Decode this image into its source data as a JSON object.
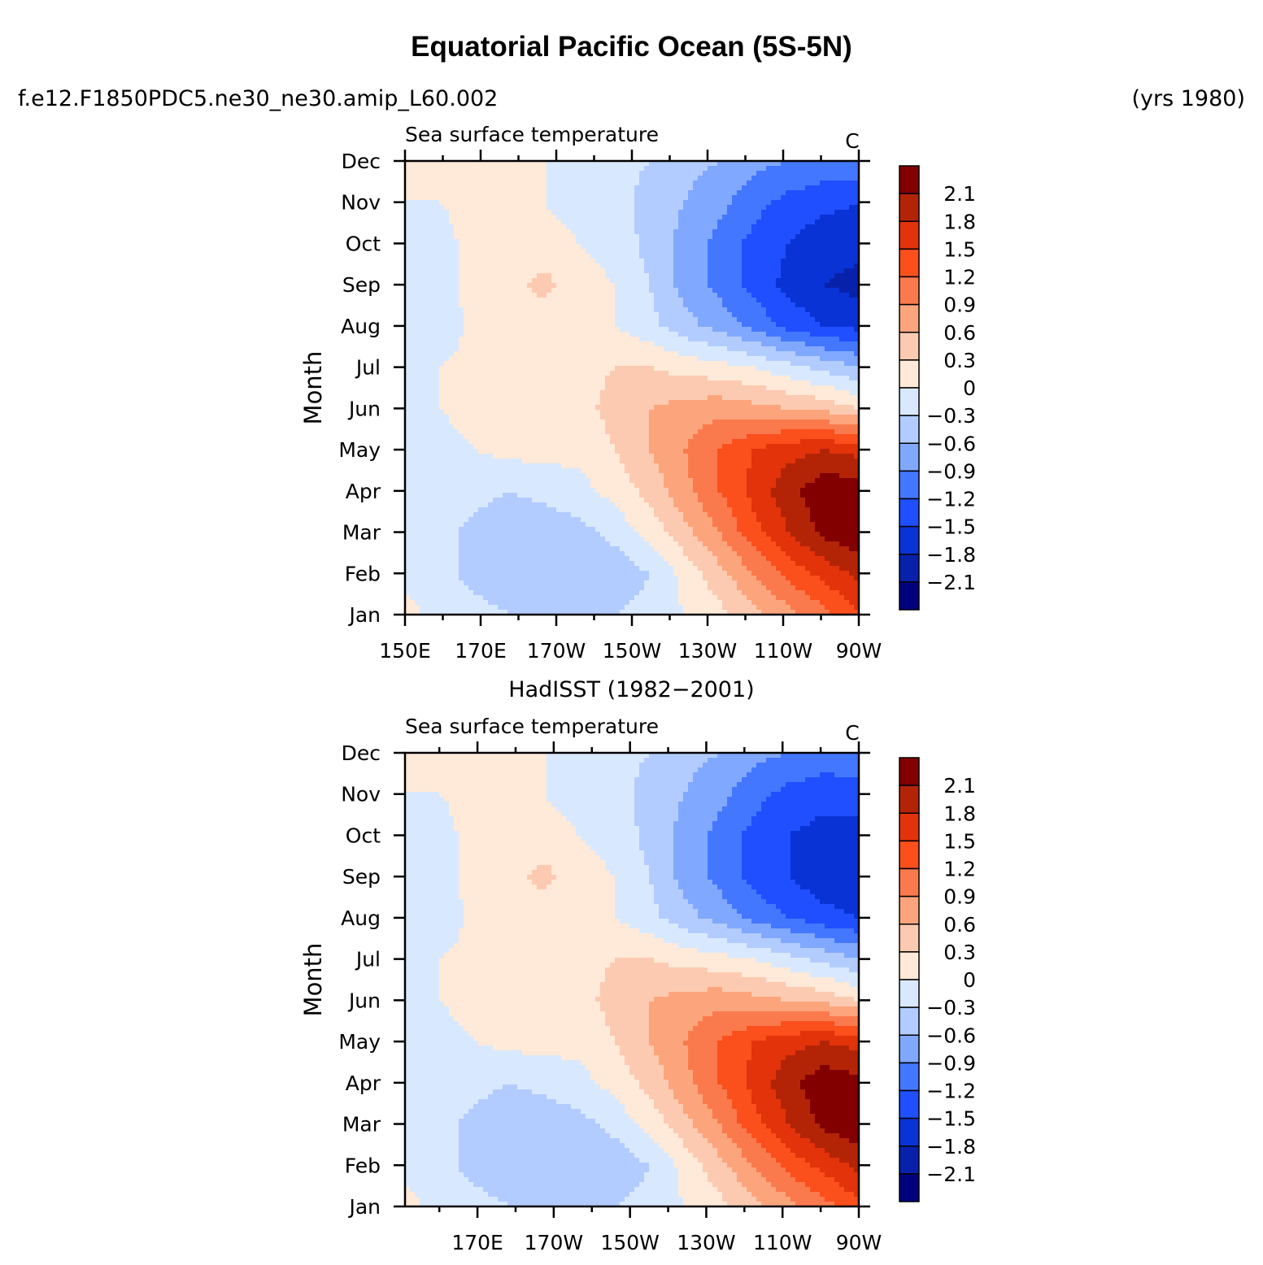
{
  "figure": {
    "title": "Equatorial Pacific Ocean (5S-5N)",
    "case_name": "f.e12.F1850PDC5.ne30_ne30.amip_L60.002",
    "years": "(yrs 1980)",
    "lower_panel_caption": "HadISST (1982−2001)"
  },
  "chart_data": [
    {
      "type": "heatmap",
      "title": "Sea surface temperature",
      "units": "C",
      "ylabel": "Month",
      "y_categories": [
        "Jan",
        "Feb",
        "Mar",
        "Apr",
        "May",
        "Jun",
        "Jul",
        "Aug",
        "Sep",
        "Oct",
        "Nov",
        "Dec"
      ],
      "x_tick_labels": [
        "150E",
        "170E",
        "170W",
        "150W",
        "130W",
        "110W",
        "90W"
      ],
      "x_ticks_lon": [
        150,
        170,
        190,
        210,
        230,
        250,
        270
      ],
      "xlim_lon": [
        150,
        270
      ],
      "z": [
        [
          0.1,
          -0.1,
          -0.2,
          -0.3,
          -0.4,
          -0.4,
          -0.3,
          -0.2,
          0.0,
          0.2,
          0.5,
          0.8,
          1.1,
          1.5
        ],
        [
          -0.1,
          -0.2,
          -0.4,
          -0.5,
          -0.6,
          -0.6,
          -0.5,
          -0.3,
          0.1,
          0.5,
          0.9,
          1.3,
          1.6,
          1.9
        ],
        [
          -0.1,
          -0.2,
          -0.4,
          -0.5,
          -0.5,
          -0.4,
          -0.2,
          0.1,
          0.5,
          0.9,
          1.4,
          1.8,
          2.2,
          2.3
        ],
        [
          -0.1,
          -0.1,
          -0.2,
          -0.3,
          -0.2,
          -0.1,
          0.1,
          0.4,
          0.8,
          1.2,
          1.6,
          2.0,
          2.3,
          2.3
        ],
        [
          -0.1,
          -0.1,
          0.0,
          0.1,
          0.1,
          0.1,
          0.3,
          0.6,
          0.9,
          1.2,
          1.5,
          1.7,
          1.8,
          1.7
        ],
        [
          -0.1,
          0.0,
          0.1,
          0.1,
          0.1,
          0.2,
          0.4,
          0.6,
          0.7,
          0.8,
          0.7,
          0.6,
          0.5,
          0.3
        ],
        [
          -0.1,
          0.0,
          0.1,
          0.1,
          0.1,
          0.2,
          0.3,
          0.3,
          0.2,
          0.1,
          0.0,
          -0.2,
          -0.4,
          -0.6
        ],
        [
          -0.1,
          -0.2,
          0.1,
          0.1,
          0.1,
          0.1,
          0.0,
          -0.2,
          -0.5,
          -0.7,
          -1.0,
          -1.3,
          -1.5,
          -1.6
        ],
        [
          -0.1,
          -0.1,
          0.1,
          0.2,
          0.4,
          0.1,
          0.0,
          -0.3,
          -0.7,
          -1.0,
          -1.3,
          -1.6,
          -1.8,
          -1.9
        ],
        [
          0.0,
          -0.1,
          0.1,
          0.1,
          0.1,
          0.0,
          -0.1,
          -0.4,
          -0.7,
          -1.0,
          -1.3,
          -1.5,
          -1.7,
          -1.7
        ],
        [
          0.0,
          0.0,
          0.1,
          0.1,
          0.0,
          -0.1,
          -0.2,
          -0.4,
          -0.6,
          -0.8,
          -1.1,
          -1.3,
          -1.4,
          -1.5
        ],
        [
          0.1,
          0.1,
          0.1,
          0.1,
          0.0,
          -0.1,
          -0.2,
          -0.3,
          -0.5,
          -0.6,
          -0.8,
          -0.9,
          -1.0,
          -0.9
        ]
      ]
    },
    {
      "type": "heatmap",
      "title": "Sea surface temperature",
      "units": "C",
      "ylabel": "Month",
      "y_categories": [
        "Jan",
        "Feb",
        "Mar",
        "Apr",
        "May",
        "Jun",
        "Jul",
        "Aug",
        "Sep",
        "Oct",
        "Nov",
        "Dec"
      ],
      "x_tick_labels": [
        "170E",
        "170W",
        "150W",
        "130W",
        "110W",
        "90W"
      ],
      "x_ticks_lon": [
        170,
        190,
        210,
        230,
        250,
        270
      ],
      "xlim_lon": [
        151,
        270
      ],
      "z": [
        [
          0.1,
          -0.1,
          -0.2,
          -0.3,
          -0.4,
          -0.4,
          -0.3,
          -0.2,
          0.0,
          0.2,
          0.5,
          0.8,
          1.1,
          1.4
        ],
        [
          -0.1,
          -0.2,
          -0.4,
          -0.5,
          -0.6,
          -0.6,
          -0.5,
          -0.3,
          0.1,
          0.5,
          0.9,
          1.3,
          1.6,
          1.9
        ],
        [
          -0.1,
          -0.2,
          -0.4,
          -0.5,
          -0.5,
          -0.4,
          -0.2,
          0.1,
          0.5,
          0.9,
          1.4,
          1.8,
          2.2,
          2.3
        ],
        [
          -0.1,
          -0.1,
          -0.2,
          -0.3,
          -0.2,
          -0.1,
          0.1,
          0.4,
          0.8,
          1.2,
          1.6,
          2.0,
          2.3,
          2.2
        ],
        [
          -0.1,
          -0.1,
          0.0,
          0.1,
          0.1,
          0.1,
          0.3,
          0.6,
          0.9,
          1.2,
          1.5,
          1.7,
          1.8,
          1.7
        ],
        [
          -0.1,
          0.0,
          0.1,
          0.1,
          0.1,
          0.2,
          0.4,
          0.6,
          0.7,
          0.8,
          0.7,
          0.6,
          0.5,
          0.3
        ],
        [
          -0.1,
          0.0,
          0.1,
          0.1,
          0.1,
          0.2,
          0.3,
          0.3,
          0.2,
          0.1,
          0.0,
          -0.2,
          -0.4,
          -0.6
        ],
        [
          -0.1,
          -0.2,
          0.1,
          0.1,
          0.1,
          0.1,
          0.0,
          -0.2,
          -0.5,
          -0.7,
          -1.0,
          -1.2,
          -1.4,
          -1.5
        ],
        [
          -0.1,
          -0.1,
          0.1,
          0.2,
          0.4,
          0.1,
          0.0,
          -0.3,
          -0.7,
          -1.0,
          -1.3,
          -1.5,
          -1.7,
          -1.7
        ],
        [
          0.0,
          -0.1,
          0.1,
          0.1,
          0.1,
          0.0,
          -0.1,
          -0.4,
          -0.7,
          -1.0,
          -1.3,
          -1.5,
          -1.6,
          -1.6
        ],
        [
          0.0,
          0.0,
          0.1,
          0.1,
          0.0,
          -0.1,
          -0.2,
          -0.4,
          -0.6,
          -0.8,
          -1.1,
          -1.3,
          -1.4,
          -1.4
        ],
        [
          0.1,
          0.1,
          0.1,
          0.1,
          0.0,
          -0.1,
          -0.2,
          -0.3,
          -0.5,
          -0.6,
          -0.8,
          -0.9,
          -1.0,
          -0.9
        ]
      ]
    }
  ],
  "colorbar": {
    "labels": [
      "2.1",
      "1.8",
      "1.5",
      "1.2",
      "0.9",
      "0.6",
      "0.3",
      "0",
      "−0.3",
      "−0.6",
      "−0.9",
      "−1.2",
      "−1.5",
      "−1.8",
      "−2.1"
    ],
    "levels": [
      -2.1,
      -1.8,
      -1.5,
      -1.2,
      -0.9,
      -0.6,
      -0.3,
      0,
      0.3,
      0.6,
      0.9,
      1.2,
      1.5,
      1.8,
      2.1
    ],
    "colors": [
      "#00007f",
      "#0821ab",
      "#0a33d6",
      "#1f4fff",
      "#4477ff",
      "#80a8ff",
      "#b3ccff",
      "#d8e9ff",
      "#ffe9d8",
      "#fccab0",
      "#fca57c",
      "#fb7a4d",
      "#fb4f1c",
      "#e2330a",
      "#b32407",
      "#820000"
    ]
  }
}
